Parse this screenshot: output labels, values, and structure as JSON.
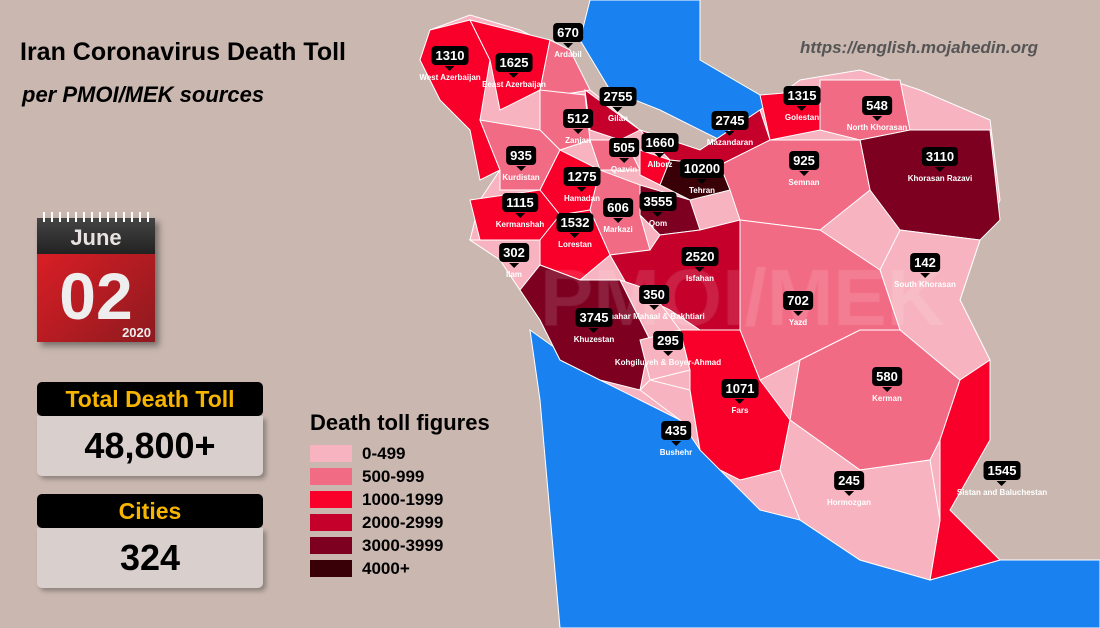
{
  "title": "Iran Coronavirus Death Toll",
  "subtitle": "per PMOI/MEK sources",
  "website": "https://english.mojahedin.org",
  "watermark": "PMOI/MEK",
  "calendar": {
    "month": "June",
    "day": "02",
    "year": "2020"
  },
  "total": {
    "label": "Total Death Toll",
    "value": "48,800+"
  },
  "cities": {
    "label": "Cities",
    "value": "324"
  },
  "legend": {
    "title": "Death toll figures",
    "items": [
      {
        "label": "0-499",
        "color": "#f7b3bf"
      },
      {
        "label": "500-999",
        "color": "#f26b84"
      },
      {
        "label": "1000-1999",
        "color": "#f8002a"
      },
      {
        "label": "2000-2999",
        "color": "#c4002b"
      },
      {
        "label": "3000-3999",
        "color": "#7d0020"
      },
      {
        "label": "4000+",
        "color": "#3a0008"
      }
    ]
  },
  "colors": {
    "background": "#c9b7b0",
    "water": "#1a82f0",
    "marker": "#000000"
  },
  "provinces": [
    {
      "name": "West Azerbaijan",
      "value": "1310"
    },
    {
      "name": "Eeast Azerbaijan",
      "value": "1625"
    },
    {
      "name": "Ardabil",
      "value": "670"
    },
    {
      "name": "Gilan",
      "value": "2755"
    },
    {
      "name": "Zanjan",
      "value": "512"
    },
    {
      "name": "Qazvin",
      "value": "505"
    },
    {
      "name": "Alborz",
      "value": "1660"
    },
    {
      "name": "Tehran",
      "value": "10200"
    },
    {
      "name": "Mazandaran",
      "value": "2745"
    },
    {
      "name": "Golestan",
      "value": "1315"
    },
    {
      "name": "North Khorasan",
      "value": "548"
    },
    {
      "name": "Khorasan Razavi",
      "value": "3110"
    },
    {
      "name": "Semnan",
      "value": "925"
    },
    {
      "name": "Kurdistan",
      "value": "935"
    },
    {
      "name": "Hamadan",
      "value": "1275"
    },
    {
      "name": "Qom",
      "value": "3555"
    },
    {
      "name": "Markazi",
      "value": "606"
    },
    {
      "name": "Kermanshah",
      "value": "1115"
    },
    {
      "name": "Lorestan",
      "value": "1532"
    },
    {
      "name": "Ilam",
      "value": "302"
    },
    {
      "name": "Isfahan",
      "value": "2520"
    },
    {
      "name": "South Khorasan",
      "value": "142"
    },
    {
      "name": "Chahar Mahaal & Bakhtiari",
      "value": "350"
    },
    {
      "name": "Khuzestan",
      "value": "3745"
    },
    {
      "name": "Yazd",
      "value": "702"
    },
    {
      "name": "Kohgiluyeh & Boyer-Ahmad",
      "value": "295"
    },
    {
      "name": "Kerman",
      "value": "580"
    },
    {
      "name": "Bushehr",
      "value": "435"
    },
    {
      "name": "Fars",
      "value": "1071"
    },
    {
      "name": "Sistan and Baluchestan",
      "value": "1545"
    },
    {
      "name": "Hormozgan",
      "value": "245"
    }
  ]
}
